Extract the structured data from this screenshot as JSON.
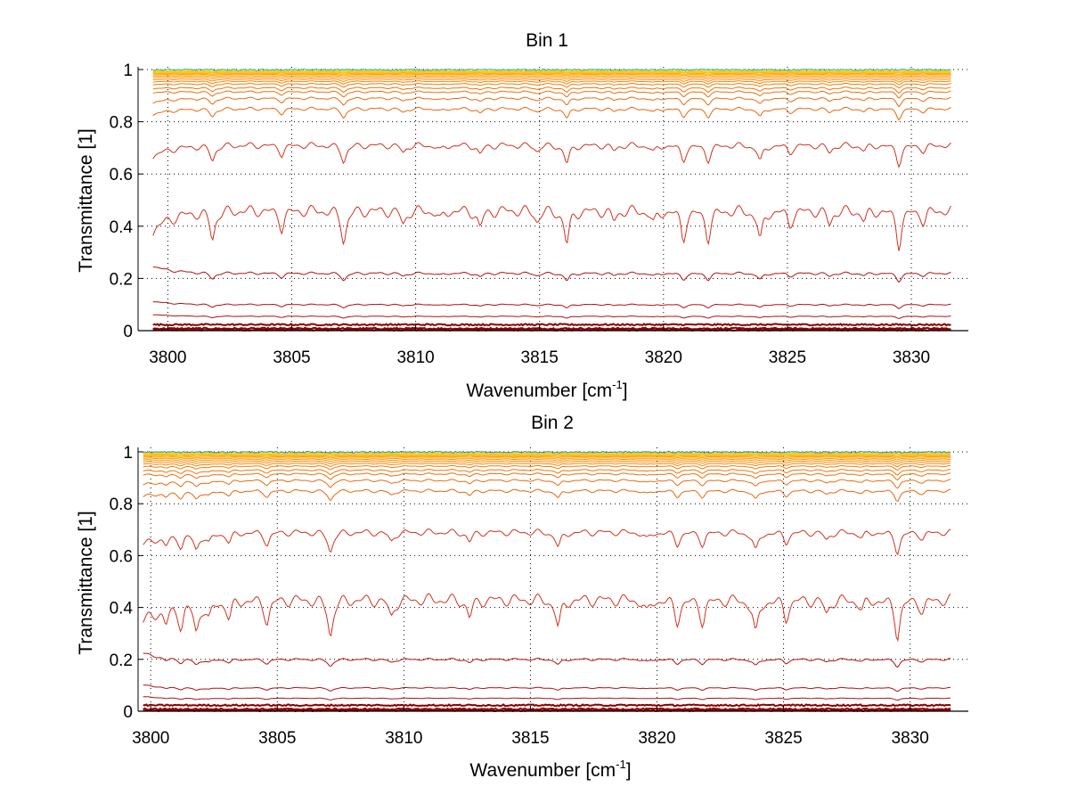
{
  "chart_data": [
    {
      "type": "line",
      "title": "Bin 1",
      "xlabel": "Wavenumber [cm",
      "xlabel_sup": "-1",
      "xlabel_end": "]",
      "ylabel": "Transmittance [1]",
      "xlim": [
        3798.8,
        3832.3
      ],
      "ylim": [
        0,
        1.02
      ],
      "xticks": [
        3800,
        3805,
        3810,
        3815,
        3820,
        3825,
        3830
      ],
      "xtick_labels": [
        "3800",
        "3805",
        "3810",
        "3815",
        "3820",
        "3825",
        "3830"
      ],
      "yticks": [
        0,
        0.2,
        0.4,
        0.6,
        0.8,
        1
      ],
      "ytick_labels": [
        "0",
        "0.2",
        "0.4",
        "0.6",
        "0.8",
        "1"
      ],
      "grid": true,
      "x_range": [
        3799.4,
        3831.6
      ],
      "baseline_levels": [
        0.0,
        0.005,
        0.02,
        0.055,
        0.1,
        0.22,
        0.46,
        0.71,
        0.85,
        0.89,
        0.915,
        0.93,
        0.945,
        0.955,
        0.963,
        0.97,
        0.976,
        0.981,
        0.985,
        0.989,
        0.992,
        0.995,
        0.997,
        0.999
      ],
      "absorption_lines": [
        3801.8,
        3804.6,
        3807.1,
        3809.5,
        3811.0,
        3812.6,
        3814.9,
        3816.1,
        3818.0,
        3819.6,
        3820.8,
        3821.8,
        3823.9,
        3825.1,
        3826.7,
        3828.1,
        3829.5,
        3830.5
      ],
      "line_depths": [
        0.8,
        0.5,
        0.9,
        0.4,
        0.3,
        0.5,
        0.3,
        1.0,
        0.3,
        0.4,
        0.8,
        0.8,
        0.9,
        0.4,
        0.4,
        0.3,
        1.0,
        0.3
      ]
    },
    {
      "type": "line",
      "title": "Bin 2",
      "xlabel": "Wavenumber [cm",
      "xlabel_sup": "-1",
      "xlabel_end": "]",
      "ylabel": "Transmittance [1]",
      "xlim": [
        3799.5,
        3832.3
      ],
      "ylim": [
        0,
        1.02
      ],
      "xticks": [
        3800,
        3805,
        3810,
        3815,
        3820,
        3825,
        3830
      ],
      "xtick_labels": [
        "3800",
        "3805",
        "3810",
        "3815",
        "3820",
        "3825",
        "3830"
      ],
      "yticks": [
        0,
        0.2,
        0.4,
        0.6,
        0.8,
        1
      ],
      "ytick_labels": [
        "0",
        "0.2",
        "0.4",
        "0.6",
        "0.8",
        "1"
      ],
      "grid": true,
      "x_range": [
        3799.7,
        3831.6
      ],
      "baseline_levels": [
        0.0,
        0.005,
        0.02,
        0.05,
        0.09,
        0.2,
        0.43,
        0.69,
        0.85,
        0.89,
        0.915,
        0.93,
        0.945,
        0.955,
        0.963,
        0.97,
        0.976,
        0.981,
        0.985,
        0.989,
        0.992,
        0.995,
        0.997,
        0.999
      ],
      "absorption_lines": [
        3800.6,
        3801.2,
        3801.8,
        3802.3,
        3803.1,
        3804.6,
        3807.1,
        3809.5,
        3812.6,
        3816.1,
        3819.6,
        3820.8,
        3821.8,
        3823.9,
        3825.1,
        3826.7,
        3828.1,
        3829.5,
        3830.5
      ],
      "line_depths": [
        0.5,
        0.6,
        0.8,
        0.5,
        0.5,
        0.6,
        1.0,
        0.5,
        0.5,
        0.8,
        0.4,
        0.6,
        0.6,
        1.0,
        0.5,
        0.4,
        0.3,
        1.0,
        0.3
      ]
    }
  ]
}
